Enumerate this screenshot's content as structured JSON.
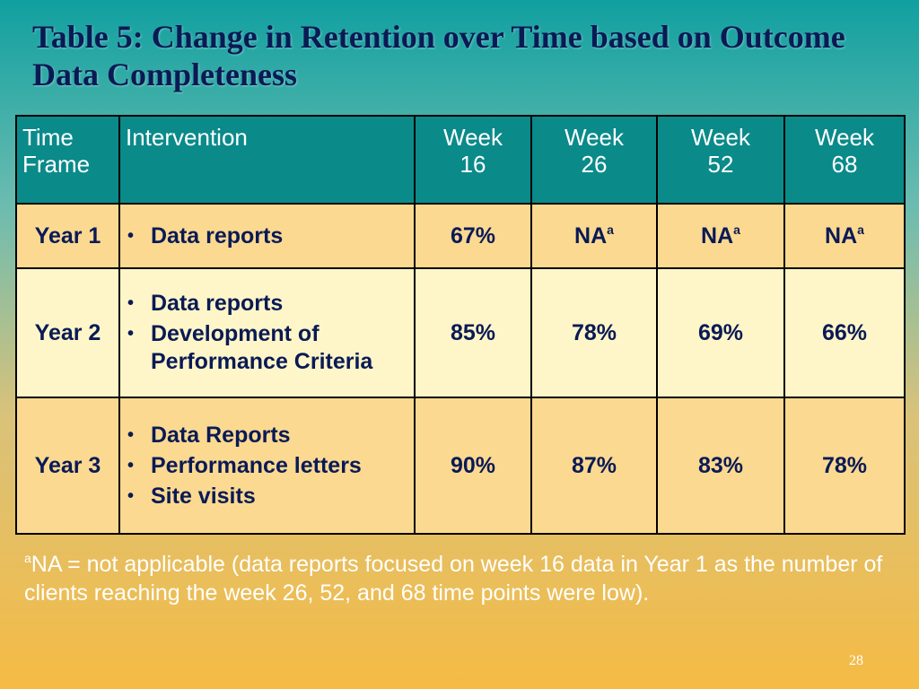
{
  "slide": {
    "title": "Table 5: Change in Retention over Time based on Outcome Data Completeness",
    "page_number": "28"
  },
  "table": {
    "headers": {
      "time_frame": [
        "Time",
        "Frame"
      ],
      "intervention": "Intervention",
      "weeks": [
        [
          "Week",
          "16"
        ],
        [
          "Week",
          "26"
        ],
        [
          "Week",
          "52"
        ],
        [
          "Week",
          "68"
        ]
      ]
    },
    "rows": [
      {
        "year": "Year 1",
        "interventions": [
          "Data reports"
        ],
        "values": [
          {
            "text": "67%",
            "sup": ""
          },
          {
            "text": "NA",
            "sup": "a"
          },
          {
            "text": "NA",
            "sup": "a"
          },
          {
            "text": "NA",
            "sup": "a"
          }
        ]
      },
      {
        "year": "Year 2",
        "interventions": [
          "Data reports",
          "Development of Performance Criteria"
        ],
        "values": [
          {
            "text": "85%",
            "sup": ""
          },
          {
            "text": "78%",
            "sup": ""
          },
          {
            "text": "69%",
            "sup": ""
          },
          {
            "text": "66%",
            "sup": ""
          }
        ]
      },
      {
        "year": "Year 3",
        "interventions": [
          "Data Reports",
          "Performance letters",
          "Site visits"
        ],
        "values": [
          {
            "text": "90%",
            "sup": ""
          },
          {
            "text": "87%",
            "sup": ""
          },
          {
            "text": "83%",
            "sup": ""
          },
          {
            "text": "78%",
            "sup": ""
          }
        ]
      }
    ]
  },
  "footnote": {
    "marker": "a",
    "text": "NA = not applicable (data reports focused on week 16 data in Year 1 as the number of clients reaching the week 26, 52, and 68 time points were low)."
  },
  "colors": {
    "header_bg": "#0b8a8a",
    "row_light": "#fef6c8",
    "row_dark": "#fbd991",
    "text_navy": "#0a1a55"
  },
  "icons": {
    "bullet": "bullet-dot-icon"
  }
}
